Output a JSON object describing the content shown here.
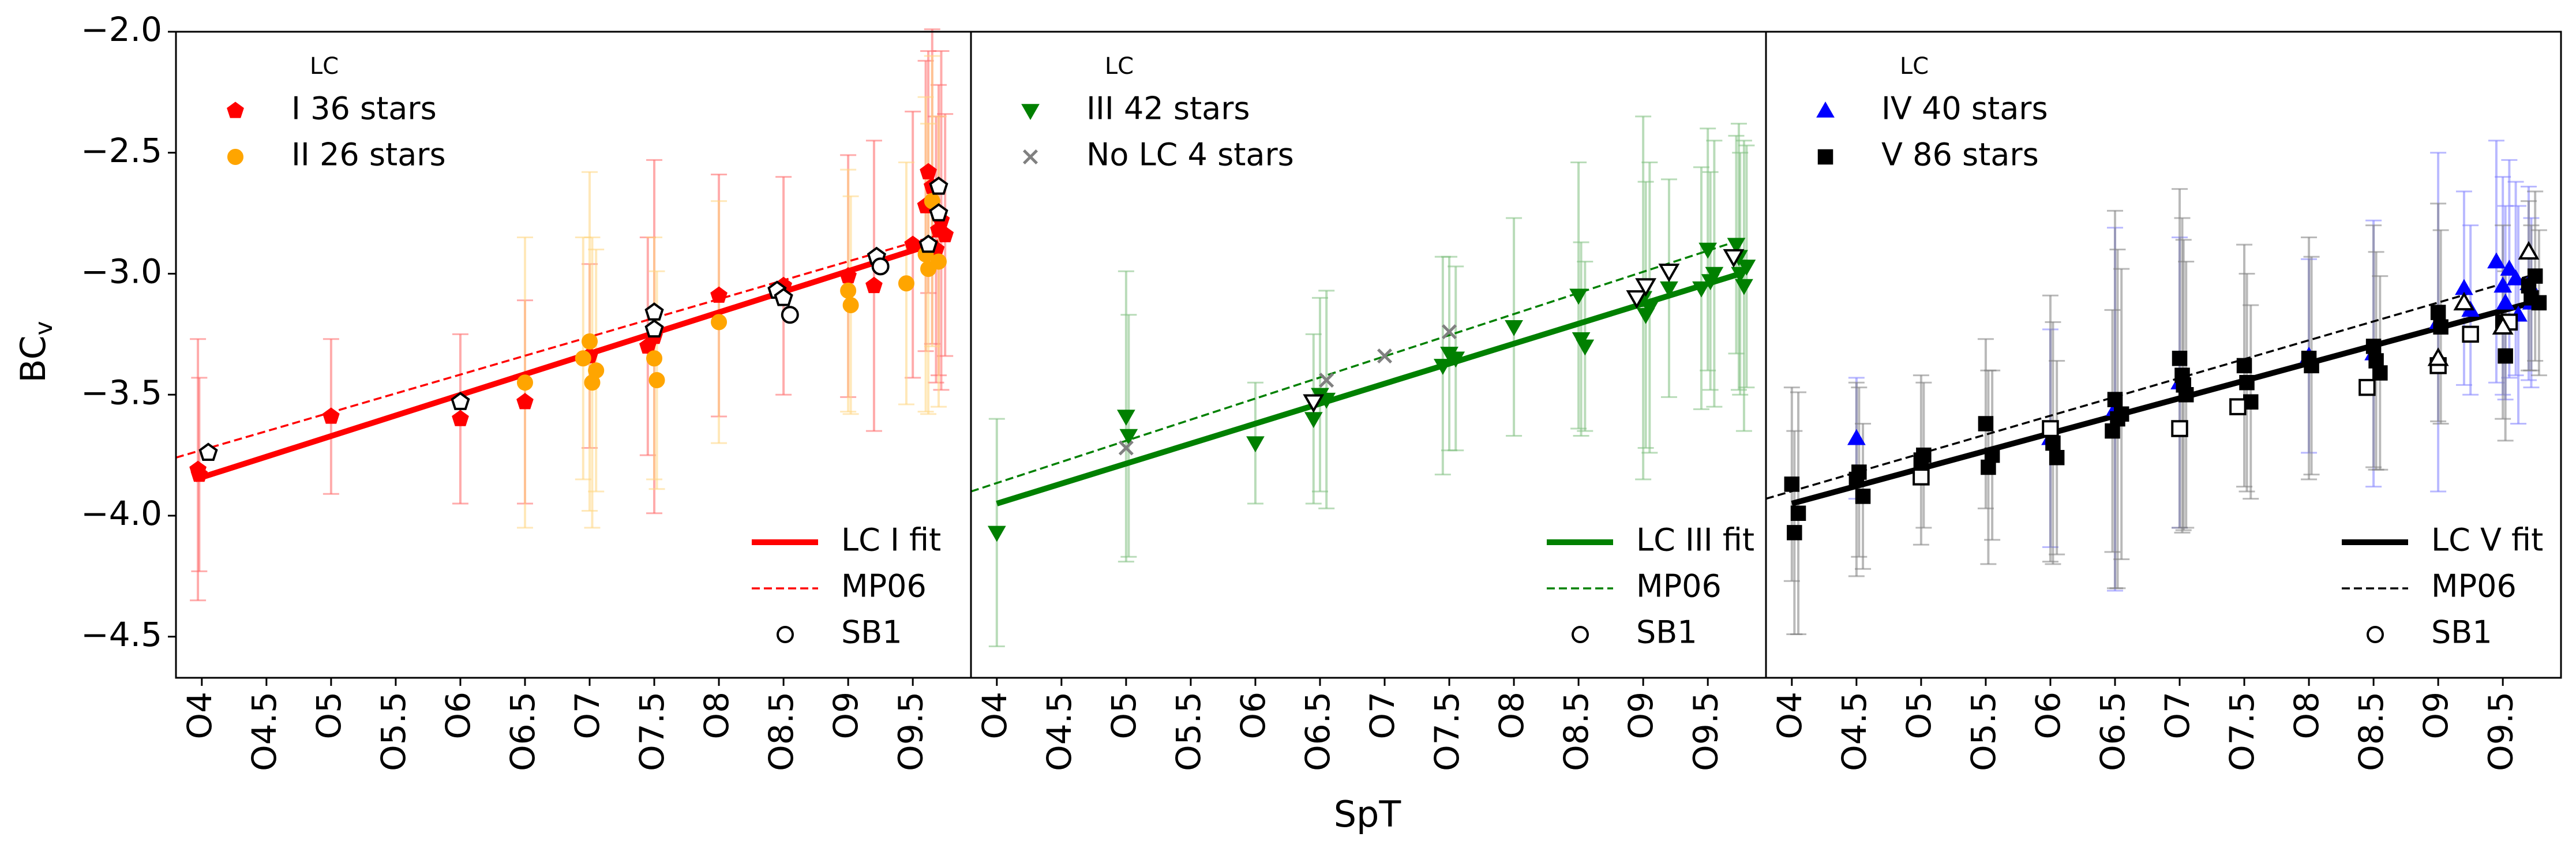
{
  "figure": {
    "ylabel": "BC",
    "ylabel_sub": "v",
    "xlabel": "SpT",
    "legend_title": "LC",
    "colors": {
      "I": "#ff0000",
      "II": "#ffa500",
      "III": "#008000",
      "NoLC": "#808080",
      "IV": "#0000ff",
      "V": "#000000"
    }
  },
  "chart_data": [
    {
      "type": "scatter",
      "panel": "left",
      "xlabel": "SpT",
      "ylabel": "BC_v",
      "xlim": [
        3.8,
        9.95
      ],
      "ylim": [
        -4.67,
        -2.0
      ],
      "x_tick_values": [
        4,
        4.5,
        5,
        5.5,
        6,
        6.5,
        7,
        7.5,
        8,
        8.5,
        9,
        9.5
      ],
      "x_tick_labels": [
        "O4",
        "O4.5",
        "O5",
        "O5.5",
        "O6",
        "O6.5",
        "O7",
        "O7.5",
        "O8",
        "O8.5",
        "O9",
        "O9.5"
      ],
      "y_tick_values": [
        -2.0,
        -2.5,
        -3.0,
        -3.5,
        -4.0,
        -4.5
      ],
      "y_tick_labels": [
        "−2.0",
        "−2.5",
        "−3.0",
        "−3.5",
        "−4.0",
        "−4.5"
      ],
      "legend_title": "LC",
      "legend_points": [
        {
          "label": "I 36 stars",
          "marker": "pentagon",
          "color": "#ff0000"
        },
        {
          "label": "II 26 stars",
          "marker": "circle",
          "color": "#ffa500"
        }
      ],
      "legend_lines": [
        {
          "label": "LC I fit",
          "style": "solid",
          "color": "#ff0000"
        },
        {
          "label": "MP06",
          "style": "dashed",
          "color": "#ff0000"
        },
        {
          "label": "SB1",
          "style": "marker",
          "color": "#000000"
        }
      ],
      "series": [
        {
          "name": "I",
          "marker": "pentagon",
          "color": "#ff0000",
          "err_color": "#ff6666",
          "points": [
            [
              3.97,
              -3.81,
              0.54
            ],
            [
              3.98,
              -3.83,
              0.4
            ],
            [
              5.0,
              -3.59,
              0.32
            ],
            [
              6.0,
              -3.6,
              0.35
            ],
            [
              6.5,
              -3.53,
              0.42
            ],
            [
              7.0,
              -3.34,
              0.38
            ],
            [
              7.45,
              -3.3,
              0.45
            ],
            [
              7.5,
              -3.26,
              0.73
            ],
            [
              8.0,
              -3.09,
              0.5
            ],
            [
              8.5,
              -3.05,
              0.45
            ],
            [
              9.0,
              -3.01,
              0.5
            ],
            [
              9.2,
              -3.05,
              0.6
            ],
            [
              9.5,
              -2.88,
              0.55
            ],
            [
              9.6,
              -2.72,
              0.6
            ],
            [
              9.65,
              -2.64,
              0.65
            ],
            [
              9.7,
              -2.82,
              0.6
            ],
            [
              9.72,
              -2.78,
              0.7
            ],
            [
              9.62,
              -2.58,
              0.5
            ],
            [
              9.68,
              -2.9,
              0.55
            ],
            [
              9.75,
              -2.84,
              0.5
            ]
          ]
        },
        {
          "name": "II",
          "marker": "circle",
          "color": "#ffa500",
          "err_color": "#ffd580",
          "points": [
            [
              6.5,
              -3.45,
              0.6
            ],
            [
              6.95,
              -3.35,
              0.5
            ],
            [
              7.0,
              -3.28,
              0.7
            ],
            [
              7.02,
              -3.45,
              0.6
            ],
            [
              7.05,
              -3.4,
              0.5
            ],
            [
              7.5,
              -3.35,
              0.5
            ],
            [
              7.52,
              -3.44,
              0.45
            ],
            [
              8.0,
              -3.2,
              0.5
            ],
            [
              9.0,
              -3.07,
              0.5
            ],
            [
              9.02,
              -3.13,
              0.45
            ],
            [
              9.45,
              -3.04,
              0.5
            ],
            [
              9.6,
              -2.92,
              0.65
            ],
            [
              9.62,
              -2.98,
              0.6
            ],
            [
              9.65,
              -2.7,
              0.6
            ],
            [
              9.7,
              -2.95,
              0.6
            ]
          ]
        },
        {
          "name": "SB1",
          "marker": "open-pentagon",
          "color": "#000000",
          "points": [
            [
              4.05,
              -3.74
            ],
            [
              6.0,
              -3.53
            ],
            [
              7.5,
              -3.16
            ],
            [
              7.5,
              -3.23
            ],
            [
              8.45,
              -3.07
            ],
            [
              8.5,
              -3.1
            ],
            [
              9.22,
              -2.93
            ],
            [
              9.7,
              -2.64
            ],
            [
              9.7,
              -2.75
            ],
            [
              9.62,
              -2.88
            ]
          ]
        },
        {
          "name": "SB1 circles",
          "marker": "open-circle",
          "color": "#000000",
          "points": [
            [
              8.55,
              -3.17
            ],
            [
              9.25,
              -2.97
            ]
          ]
        }
      ],
      "fit": {
        "name": "LC I fit",
        "x": [
          3.95,
          9.7
        ],
        "y": [
          -3.85,
          -2.87
        ],
        "color": "#ff0000"
      },
      "mp06": {
        "name": "MP06",
        "x": [
          3.8,
          9.7
        ],
        "y": [
          -3.76,
          -2.84
        ],
        "color": "#ff0000"
      }
    },
    {
      "type": "scatter",
      "panel": "middle",
      "xlabel": "SpT",
      "ylabel": "BC_v",
      "xlim": [
        3.8,
        9.95
      ],
      "ylim": [
        -4.67,
        -2.0
      ],
      "x_tick_values": [
        4,
        4.5,
        5,
        5.5,
        6,
        6.5,
        7,
        7.5,
        8,
        8.5,
        9,
        9.5
      ],
      "x_tick_labels": [
        "O4",
        "O4.5",
        "O5",
        "O5.5",
        "O6",
        "O6.5",
        "O7",
        "O7.5",
        "O8",
        "O8.5",
        "O9",
        "O9.5"
      ],
      "legend_title": "LC",
      "legend_points": [
        {
          "label": "III 42 stars",
          "marker": "triangle-down",
          "color": "#008000"
        },
        {
          "label": "No LC 4 stars",
          "marker": "cross",
          "color": "#808080"
        }
      ],
      "legend_lines": [
        {
          "label": "LC III fit",
          "style": "solid",
          "color": "#008000"
        },
        {
          "label": "MP06",
          "style": "dashed",
          "color": "#008000"
        },
        {
          "label": "SB1",
          "style": "marker",
          "color": "#000000"
        }
      ],
      "series": [
        {
          "name": "III",
          "marker": "triangle-down",
          "color": "#008000",
          "err_color": "#7fbf7f",
          "points": [
            [
              4.0,
              -4.07,
              0.47
            ],
            [
              5.0,
              -3.59,
              0.6
            ],
            [
              5.02,
              -3.67,
              0.5
            ],
            [
              6.0,
              -3.7,
              0.25
            ],
            [
              6.45,
              -3.6,
              0.35
            ],
            [
              6.5,
              -3.5,
              0.4
            ],
            [
              6.55,
              -3.52,
              0.45
            ],
            [
              7.45,
              -3.38,
              0.45
            ],
            [
              7.5,
              -3.33,
              0.4
            ],
            [
              7.55,
              -3.35,
              0.38
            ],
            [
              8.0,
              -3.22,
              0.45
            ],
            [
              8.5,
              -3.09,
              0.55
            ],
            [
              8.52,
              -3.27,
              0.4
            ],
            [
              8.55,
              -3.3,
              0.35
            ],
            [
              9.0,
              -3.1,
              0.75
            ],
            [
              9.02,
              -3.17,
              0.55
            ],
            [
              9.05,
              -3.14,
              0.6
            ],
            [
              9.2,
              -3.06,
              0.45
            ],
            [
              9.45,
              -3.06,
              0.5
            ],
            [
              9.5,
              -2.9,
              0.5
            ],
            [
              9.52,
              -3.03,
              0.45
            ],
            [
              9.55,
              -3.0,
              0.55
            ],
            [
              9.72,
              -2.88,
              0.45
            ],
            [
              9.74,
              -2.93,
              0.55
            ],
            [
              9.75,
              -3.0,
              0.5
            ],
            [
              9.78,
              -3.05,
              0.6
            ],
            [
              9.8,
              -2.97,
              0.5
            ]
          ]
        },
        {
          "name": "No LC",
          "marker": "cross",
          "color": "#808080",
          "points": [
            [
              5.0,
              -3.72
            ],
            [
              6.55,
              -3.44
            ],
            [
              7.0,
              -3.34
            ],
            [
              7.5,
              -3.24
            ]
          ]
        },
        {
          "name": "SB1",
          "marker": "open-triangle-down",
          "color": "#000000",
          "points": [
            [
              6.45,
              -3.53
            ],
            [
              8.95,
              -3.1
            ],
            [
              9.02,
              -3.05
            ],
            [
              9.2,
              -2.99
            ],
            [
              9.7,
              -2.93
            ]
          ]
        }
      ],
      "fit": {
        "name": "LC III fit",
        "x": [
          4.0,
          9.75
        ],
        "y": [
          -3.95,
          -3.0
        ],
        "color": "#008000"
      },
      "mp06": {
        "name": "MP06",
        "x": [
          3.8,
          9.7
        ],
        "y": [
          -3.9,
          -2.87
        ],
        "color": "#008000"
      }
    },
    {
      "type": "scatter",
      "panel": "right",
      "xlabel": "SpT",
      "ylabel": "BC_v",
      "xlim": [
        3.8,
        9.95
      ],
      "ylim": [
        -4.67,
        -2.0
      ],
      "x_tick_values": [
        4,
        4.5,
        5,
        5.5,
        6,
        6.5,
        7,
        7.5,
        8,
        8.5,
        9,
        9.5
      ],
      "x_tick_labels": [
        "O4",
        "O4.5",
        "O5",
        "O5.5",
        "O6",
        "O6.5",
        "O7",
        "O7.5",
        "O8",
        "O8.5",
        "O9",
        "O9.5"
      ],
      "legend_title": "LC",
      "legend_points": [
        {
          "label": "IV 40 stars",
          "marker": "triangle-up",
          "color": "#0000ff"
        },
        {
          "label": "V 86 stars",
          "marker": "square",
          "color": "#000000"
        }
      ],
      "legend_lines": [
        {
          "label": "LC V fit",
          "style": "solid",
          "color": "#000000"
        },
        {
          "label": "MP06",
          "style": "dashed",
          "color": "#000000"
        },
        {
          "label": "SB1",
          "style": "marker",
          "color": "#000000"
        }
      ],
      "series": [
        {
          "name": "IV",
          "marker": "triangle-up",
          "color": "#0000ff",
          "err_color": "#8080ff",
          "points": [
            [
              4.5,
              -3.68,
              0.25
            ],
            [
              6.0,
              -3.68,
              0.45
            ],
            [
              6.5,
              -3.56,
              0.75
            ],
            [
              7.0,
              -3.45,
              0.6
            ],
            [
              8.0,
              -3.34,
              0.4
            ],
            [
              8.5,
              -3.33,
              0.55
            ],
            [
              9.0,
              -3.2,
              0.7
            ],
            [
              9.2,
              -3.06,
              0.4
            ],
            [
              9.25,
              -3.15,
              0.35
            ],
            [
              9.45,
              -2.95,
              0.5
            ],
            [
              9.5,
              -3.05,
              0.45
            ],
            [
              9.52,
              -3.12,
              0.4
            ],
            [
              9.55,
              -2.98,
              0.45
            ],
            [
              9.6,
              -3.02,
              0.4
            ],
            [
              9.62,
              -3.17,
              0.45
            ],
            [
              9.7,
              -3.04,
              0.4
            ],
            [
              9.72,
              -3.12,
              0.35
            ]
          ]
        },
        {
          "name": "V",
          "marker": "square",
          "color": "#000000",
          "err_color": "#808080",
          "points": [
            [
              4.0,
              -3.87,
              0.4
            ],
            [
              4.02,
              -4.07,
              0.42
            ],
            [
              4.05,
              -3.99,
              0.5
            ],
            [
              4.5,
              -3.85,
              0.4
            ],
            [
              4.52,
              -3.82,
              0.35
            ],
            [
              4.55,
              -3.92,
              0.3
            ],
            [
              5.0,
              -3.77,
              0.35
            ],
            [
              5.02,
              -3.75,
              0.3
            ],
            [
              5.5,
              -3.62,
              0.35
            ],
            [
              5.52,
              -3.8,
              0.4
            ],
            [
              5.55,
              -3.75,
              0.35
            ],
            [
              6.0,
              -3.64,
              0.55
            ],
            [
              6.02,
              -3.7,
              0.5
            ],
            [
              6.05,
              -3.76,
              0.4
            ],
            [
              6.5,
              -3.52,
              0.78
            ],
            [
              6.52,
              -3.6,
              0.7
            ],
            [
              6.55,
              -3.58,
              0.6
            ],
            [
              6.48,
              -3.65,
              0.5
            ],
            [
              7.0,
              -3.35,
              0.7
            ],
            [
              7.02,
              -3.42,
              0.65
            ],
            [
              7.05,
              -3.5,
              0.55
            ],
            [
              7.03,
              -3.46,
              0.6
            ],
            [
              7.5,
              -3.38,
              0.5
            ],
            [
              7.52,
              -3.45,
              0.45
            ],
            [
              7.55,
              -3.53,
              0.4
            ],
            [
              8.0,
              -3.35,
              0.5
            ],
            [
              8.02,
              -3.38,
              0.45
            ],
            [
              8.5,
              -3.3,
              0.5
            ],
            [
              8.52,
              -3.36,
              0.45
            ],
            [
              8.55,
              -3.41,
              0.4
            ],
            [
              9.0,
              -3.16,
              0.45
            ],
            [
              9.02,
              -3.22,
              0.4
            ],
            [
              9.5,
              -3.2,
              0.4
            ],
            [
              9.52,
              -3.34,
              0.35
            ],
            [
              9.7,
              -3.05,
              0.35
            ],
            [
              9.72,
              -3.1,
              0.3
            ],
            [
              9.75,
              -3.01,
              0.35
            ],
            [
              9.78,
              -3.12,
              0.3
            ]
          ]
        },
        {
          "name": "SB1 squares",
          "marker": "open-square",
          "color": "#000000",
          "points": [
            [
              5.0,
              -3.84
            ],
            [
              6.0,
              -3.64
            ],
            [
              7.0,
              -3.64
            ],
            [
              7.45,
              -3.55
            ],
            [
              8.45,
              -3.47
            ],
            [
              9.0,
              -3.38
            ],
            [
              9.25,
              -3.25
            ],
            [
              9.55,
              -3.2
            ]
          ]
        },
        {
          "name": "SB1 triangles",
          "marker": "open-triangle-up",
          "color": "#000000",
          "points": [
            [
              9.0,
              -3.35
            ],
            [
              9.2,
              -3.12
            ],
            [
              9.5,
              -3.22
            ],
            [
              9.7,
              -2.91
            ]
          ]
        }
      ],
      "fit": {
        "name": "LC V fit",
        "x": [
          4.0,
          9.72
        ],
        "y": [
          -3.95,
          -3.12
        ],
        "color": "#000000"
      },
      "mp06": {
        "name": "MP06",
        "x": [
          3.8,
          9.7
        ],
        "y": [
          -3.93,
          -3.01
        ],
        "color": "#000000"
      }
    }
  ]
}
